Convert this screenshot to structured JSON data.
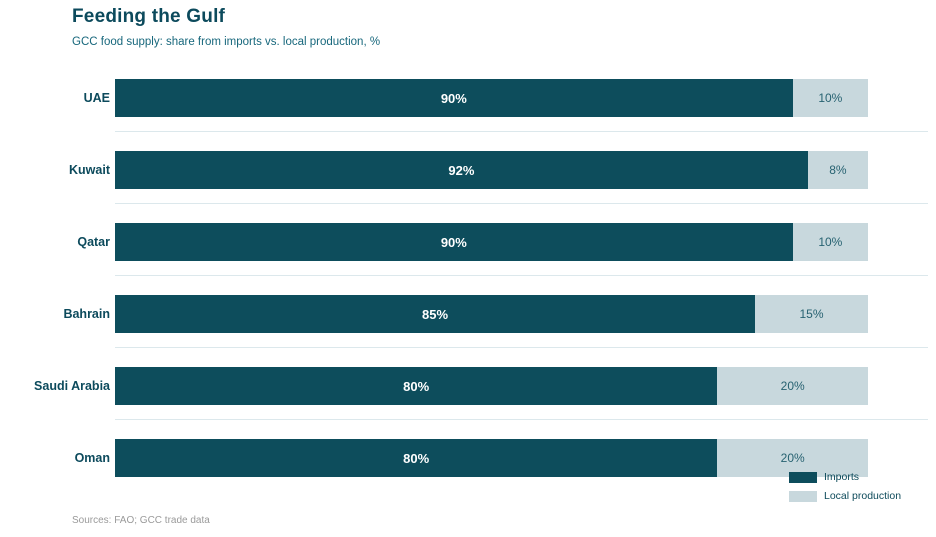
{
  "header": {
    "title": "Feeding the Gulf",
    "subtitle": "GCC food supply: share from imports vs. local production, %"
  },
  "chart_data": {
    "type": "bar",
    "orientation": "horizontal",
    "stacked": true,
    "title": "Feeding the Gulf",
    "subtitle": "GCC food supply: share from imports vs. local production, %",
    "categories": [
      "UAE",
      "Kuwait",
      "Qatar",
      "Bahrain",
      "Saudi Arabia",
      "Oman"
    ],
    "series": [
      {
        "name": "Imports",
        "color": "#0d4d5c",
        "values": [
          90,
          92,
          90,
          85,
          80,
          80
        ]
      },
      {
        "name": "Local production",
        "color": "#c8d8dd",
        "values": [
          10,
          8,
          10,
          15,
          20,
          20
        ]
      }
    ],
    "data_labels": [
      [
        "90%",
        "10%"
      ],
      [
        "92%",
        "8%"
      ],
      [
        "90%",
        "10%"
      ],
      [
        "85%",
        "15%"
      ],
      [
        "80%",
        "20%"
      ],
      [
        "80%",
        "20%"
      ]
    ],
    "value_suffix": "%",
    "xlim": [
      0,
      100
    ],
    "grid": "row-separators",
    "legend_position": "bottom-right"
  },
  "footer": {
    "source": "Sources: FAO; GCC trade data"
  },
  "colors": {
    "imports": "#0d4d5c",
    "local_production": "#c8d8dd",
    "title_text": "#0c4a5c",
    "subtitle_text": "#17677c",
    "separator": "#dce8ec",
    "source_text": "#9a9a9a",
    "bar_label_on_dark": "#ffffff",
    "bar_label_on_light": "#276271"
  }
}
